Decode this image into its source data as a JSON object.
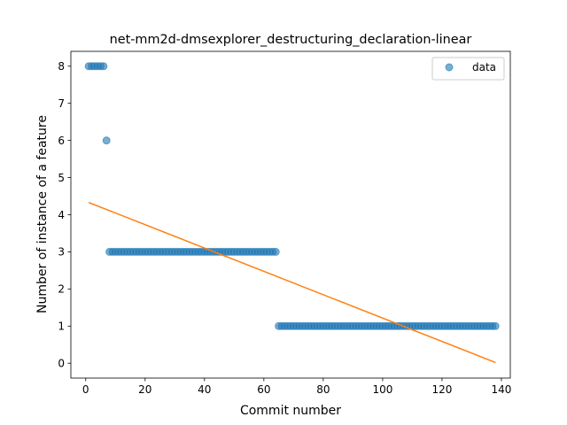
{
  "chart_data": {
    "type": "scatter",
    "title": "net-mm2d-dmsexplorer_destructuring_declaration-linear",
    "xlabel": "Commit number",
    "ylabel": "Number of instance of a feature",
    "xlim": [
      -5,
      143
    ],
    "ylim": [
      -0.4,
      8.4
    ],
    "xticks": [
      0,
      20,
      40,
      60,
      80,
      100,
      120,
      140
    ],
    "yticks": [
      0,
      1,
      2,
      3,
      4,
      5,
      6,
      7,
      8
    ],
    "grid": false,
    "legend_position": "top-right",
    "series": [
      {
        "name": "data",
        "kind": "scatter",
        "color": "#1f77b4",
        "segments": [
          {
            "x_start": 1,
            "x_end": 6,
            "y": 8
          },
          {
            "x_start": 7,
            "x_end": 7,
            "y": 6
          },
          {
            "x_start": 8,
            "x_end": 64,
            "y": 3
          },
          {
            "x_start": 65,
            "x_end": 138,
            "y": 1
          }
        ]
      },
      {
        "kind": "line",
        "color": "#ff7f0e",
        "points": [
          [
            1,
            4.33
          ],
          [
            138,
            0.02
          ]
        ]
      }
    ]
  }
}
